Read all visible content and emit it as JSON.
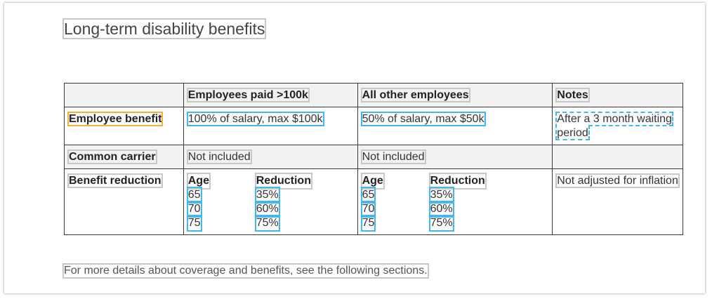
{
  "title": "Long-term disability benefits",
  "table": {
    "headers": [
      "",
      "Employees paid >100k",
      "All other employees",
      "Notes"
    ],
    "rows": {
      "employee_benefit": {
        "label": "Employee benefit",
        "high": "100% of salary, max $100k",
        "other": "50% of salary, max $50k",
        "notes": "After a 3 month waiting period"
      },
      "common_carrier": {
        "label": "Common carrier",
        "high": "Not included",
        "other": "Not included",
        "notes": ""
      },
      "benefit_reduction": {
        "label": "Benefit reduction",
        "age_header": "Age",
        "reduction_header": "Reduction",
        "high": [
          {
            "age": "65",
            "reduction": "35%"
          },
          {
            "age": "70",
            "reduction": "60%"
          },
          {
            "age": "75",
            "reduction": "75%"
          }
        ],
        "other": [
          {
            "age": "65",
            "reduction": "35%"
          },
          {
            "age": "70",
            "reduction": "60%"
          },
          {
            "age": "75",
            "reduction": "75%"
          }
        ],
        "notes": "Not adjusted for inflation"
      }
    }
  },
  "footnote": "For more details about coverage and benefits, see the following sections."
}
